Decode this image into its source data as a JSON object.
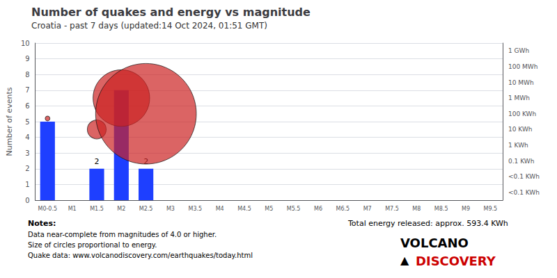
{
  "chart_data": {
    "type": "bar",
    "title": "Number of quakes and energy vs magnitude",
    "subtitle": "Croatia - past 7 days (updated:14 Oct 2024, 01:51 GMT)",
    "ylabel": "Number of events",
    "categories": [
      "M0-0.5",
      "M1",
      "M1.5",
      "M2",
      "M2.5",
      "M3",
      "M3.5",
      "M4",
      "M4.5",
      "M5",
      "M5.5",
      "M6",
      "M6.5",
      "M7",
      "M7.5",
      "M8",
      "M8.5",
      "M9",
      "M9.5"
    ],
    "values": [
      5,
      0,
      2,
      7,
      2,
      0,
      0,
      0,
      0,
      0,
      0,
      0,
      0,
      0,
      0,
      0,
      0,
      0,
      0
    ],
    "value_labels": [
      null,
      null,
      "2",
      null,
      "2",
      null,
      null,
      null,
      null,
      null,
      null,
      null,
      null,
      null,
      null,
      null,
      null,
      null,
      null
    ],
    "color": "#1e3fff",
    "ylim": [
      0,
      10
    ],
    "yticks": [
      0,
      1,
      2,
      3,
      4,
      5,
      6,
      7,
      8,
      9,
      10
    ],
    "y2lim": [
      0,
      10
    ],
    "y2ticks": [
      {
        "value": 9.5,
        "label": "1 GWh"
      },
      {
        "value": 8.5,
        "label": "100 MWh"
      },
      {
        "value": 7.5,
        "label": "10 MWh"
      },
      {
        "value": 6.5,
        "label": "1 MWh"
      },
      {
        "value": 5.5,
        "label": "100 KWh"
      },
      {
        "value": 4.5,
        "label": "10 KWh"
      },
      {
        "value": 3.5,
        "label": "1 KWh"
      },
      {
        "value": 2.5,
        "label": "0.1 KWh"
      },
      {
        "value": 1.5,
        "label": "<0.1 KWh"
      },
      {
        "value": 0.5,
        "label": "<0.1 KWh"
      }
    ],
    "grid": true,
    "circles": {
      "type": "scatter",
      "color": "#cc2222",
      "values": [
        5.2,
        null,
        4.5,
        6.5,
        5.5,
        null,
        null,
        null,
        null,
        null,
        null,
        null,
        null,
        null,
        null,
        null,
        null,
        null,
        null
      ],
      "sizes": [
        0.15,
        null,
        0.6,
        1.8,
        3.2,
        null,
        null,
        null,
        null,
        null,
        null,
        null,
        null,
        null,
        null,
        null,
        null,
        null,
        null
      ]
    },
    "notes_title": "Notes:",
    "notes": [
      "Data near-complete from magnitudes of 4.0 or higher.",
      "Size of circles proportional to energy.",
      "Quake data: www.volcanodiscovery.com/earthquakes/today.html"
    ],
    "energy_text": "Total energy released: approx. 593.4 KWh",
    "logo": [
      {
        "text": "VOLCANO",
        "color": "#000000"
      },
      {
        "text": "▲",
        "color": "#000000"
      },
      {
        "text": "DISCOVERY",
        "color": "#cc0000"
      }
    ]
  }
}
